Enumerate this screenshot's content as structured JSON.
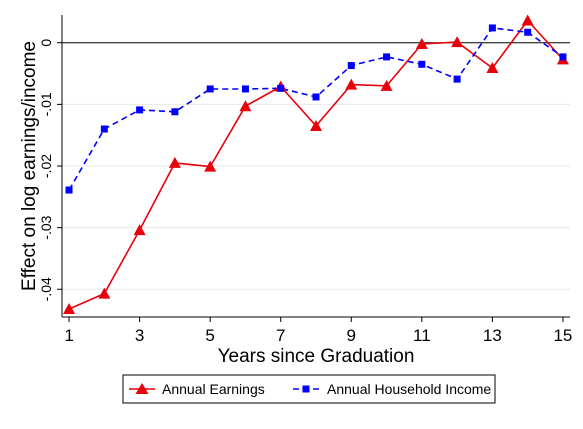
{
  "chart_data": {
    "type": "line",
    "xlabel": "Years since Graduation",
    "ylabel": "Effect on log earnings/income",
    "x": [
      1,
      2,
      3,
      4,
      5,
      6,
      7,
      8,
      9,
      10,
      11,
      12,
      13,
      14,
      15
    ],
    "xticks": [
      1,
      3,
      5,
      7,
      9,
      11,
      13,
      15
    ],
    "xticklabels": [
      "1",
      "3",
      "5",
      "7",
      "9",
      "11",
      "13",
      "15"
    ],
    "xlim": [
      0.8,
      15.2
    ],
    "yticks": [
      -0.04,
      -0.03,
      -0.02,
      -0.01,
      0
    ],
    "yticklabels": [
      "-.04",
      "-.03",
      "-.02",
      "-.01",
      "0"
    ],
    "ylim": [
      -0.0445,
      0.0045
    ],
    "reference_line_y": 0,
    "grid": true,
    "legend_position": "bottom",
    "series": [
      {
        "name": "Annual Earnings",
        "color": "#e8000b",
        "marker": "triangle",
        "line_style": "solid",
        "values": [
          -0.0432,
          -0.0407,
          -0.0304,
          -0.0195,
          -0.0201,
          -0.0103,
          -0.0071,
          -0.0135,
          -0.0068,
          -0.007,
          -0.0002,
          0.0001,
          -0.0041,
          0.0036,
          -0.0027
        ]
      },
      {
        "name": "Annual Household Income",
        "color": "#0000ff",
        "marker": "square",
        "line_style": "dashed",
        "values": [
          -0.0239,
          -0.014,
          -0.0109,
          -0.0112,
          -0.0075,
          -0.0075,
          -0.0074,
          -0.0088,
          -0.0037,
          -0.0023,
          -0.0035,
          -0.0059,
          0.0024,
          0.0017,
          -0.0023
        ]
      }
    ]
  }
}
